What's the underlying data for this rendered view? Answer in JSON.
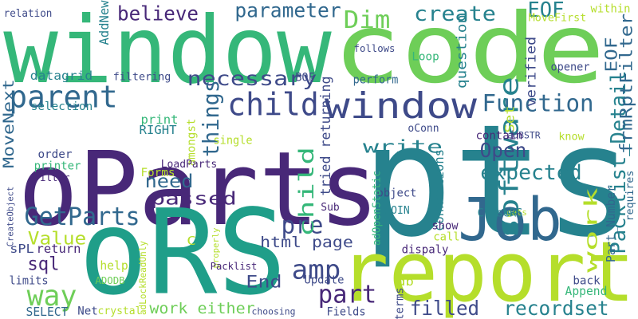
{
  "colors": {
    "background": "#ffffff",
    "palette": [
      "#440154",
      "#482878",
      "#3e4a89",
      "#31688e",
      "#26828e",
      "#1f9e89",
      "#35b779",
      "#6ece58",
      "#b5de2b",
      "#fde725"
    ]
  },
  "words": [
    {
      "text": "oParts",
      "color": "#482878"
    },
    {
      "text": "code",
      "color": "#6ece58"
    },
    {
      "text": "window",
      "color": "#35b779"
    },
    {
      "text": "pts",
      "color": "#26828e"
    },
    {
      "text": "oRS",
      "color": "#1f9e89"
    },
    {
      "text": "report",
      "color": "#b5de2b"
    },
    {
      "text": "Job",
      "color": "#31688e"
    },
    {
      "text": "child",
      "color": "#3e4a89"
    },
    {
      "text": "window",
      "color": "#3e4a89"
    },
    {
      "text": "Packlist_Detail",
      "color": "#26828e"
    },
    {
      "text": "parent",
      "color": "#31688e"
    },
    {
      "text": "GetParts",
      "color": "#31688e"
    },
    {
      "text": "way",
      "color": "#6ece58"
    },
    {
      "text": "sql",
      "color": "#482878"
    },
    {
      "text": "pre",
      "color": "#3e4a89"
    },
    {
      "text": "part",
      "color": "#482878"
    },
    {
      "text": "Function",
      "color": "#31688e"
    },
    {
      "text": "Dim",
      "color": "#6ece58"
    },
    {
      "text": "believe",
      "color": "#482878"
    },
    {
      "text": "parameter",
      "color": "#31688e"
    },
    {
      "text": "create",
      "color": "#26828e"
    },
    {
      "text": "EOF",
      "color": "#26828e"
    },
    {
      "text": "necessary",
      "color": "#3e4a89"
    },
    {
      "text": "software",
      "color": "#26828e"
    },
    {
      "text": "child",
      "color": "#35b779"
    },
    {
      "text": "things",
      "color": "#31688e"
    },
    {
      "text": "write",
      "color": "#26828e"
    },
    {
      "text": "Open",
      "color": "#3e4a89"
    },
    {
      "text": "expected",
      "color": "#26828e"
    },
    {
      "text": "need",
      "color": "#31688e"
    },
    {
      "text": "passed",
      "color": "#482878"
    },
    {
      "text": "Value",
      "color": "#b5de2b"
    },
    {
      "text": "amp",
      "color": "#3e4a89"
    },
    {
      "text": "End",
      "color": "#3e4a89"
    },
    {
      "text": "filled",
      "color": "#3e4a89"
    },
    {
      "text": "recordset",
      "color": "#26828e"
    },
    {
      "text": "work",
      "color": "#b5de2b"
    },
    {
      "text": "work either",
      "color": "#6ece58"
    },
    {
      "text": "html page",
      "color": "#3e4a89"
    },
    {
      "text": "tried returning",
      "color": "#3e4a89"
    },
    {
      "text": "EOF",
      "color": "#31688e"
    },
    {
      "text": "MoveFirst",
      "color": "#b5de2b"
    },
    {
      "text": "frmRptFilter",
      "color": "#31688e"
    },
    {
      "text": "Part_Number",
      "color": "#31688e"
    },
    {
      "text": "requires",
      "color": "#31688e"
    },
    {
      "text": "relation",
      "color": "#3e4a89"
    },
    {
      "text": "AddNew",
      "color": "#26828e"
    },
    {
      "text": "within",
      "color": "#b5de2b"
    },
    {
      "text": "follows",
      "color": "#3e4a89"
    },
    {
      "text": "question",
      "color": "#26828e"
    },
    {
      "text": "verified",
      "color": "#3e4a89"
    },
    {
      "text": "Loop",
      "color": "#35b779"
    },
    {
      "text": "perform",
      "color": "#31688e"
    },
    {
      "text": "opener",
      "color": "#3e4a89"
    },
    {
      "text": "datagrid",
      "color": "#26828e"
    },
    {
      "text": "filtering",
      "color": "#3e4a89"
    },
    {
      "text": "BOF",
      "color": "#3e4a89"
    },
    {
      "text": "MoveNext",
      "color": "#31688e"
    },
    {
      "text": "selection",
      "color": "#26828e"
    },
    {
      "text": "print",
      "color": "#35b779"
    },
    {
      "text": "RIGHT",
      "color": "#26828e"
    },
    {
      "text": "amongst",
      "color": "#b5de2b"
    },
    {
      "text": "oConn",
      "color": "#3e4a89"
    },
    {
      "text": "adBSTR",
      "color": "#3e4a89"
    },
    {
      "text": "Set",
      "color": "#b5de2b"
    },
    {
      "text": "know",
      "color": "#b5de2b"
    },
    {
      "text": "order",
      "color": "#3e4a89"
    },
    {
      "text": "printer",
      "color": "#35b779"
    },
    {
      "text": "filter",
      "color": "#482878"
    },
    {
      "text": "single",
      "color": "#b5de2b"
    },
    {
      "text": "contain",
      "color": "#482878"
    },
    {
      "text": "LoadParts",
      "color": "#482878"
    },
    {
      "text": "Forms",
      "color": "#b5de2b"
    },
    {
      "text": "connections",
      "color": "#26828e"
    },
    {
      "text": "gets",
      "color": "#b5de2b"
    },
    {
      "text": "CreateObject",
      "color": "#3e4a89"
    },
    {
      "text": "object",
      "color": "#3e4a89"
    },
    {
      "text": "Sub",
      "color": "#482878"
    },
    {
      "text": "JOIN",
      "color": "#26828e"
    },
    {
      "text": "adOpenStatic",
      "color": "#35b779"
    },
    {
      "text": "show",
      "color": "#482878"
    },
    {
      "text": "CloseRS",
      "color": "#26828e"
    },
    {
      "text": "sPL",
      "color": "#3e4a89"
    },
    {
      "text": "return",
      "color": "#482878"
    },
    {
      "text": "C",
      "color": "#b5de2b"
    },
    {
      "text": "properly",
      "color": "#b5de2b"
    },
    {
      "text": "call",
      "color": "#b5de2b"
    },
    {
      "text": "dispaly",
      "color": "#482878"
    },
    {
      "text": "help",
      "color": "#b5de2b"
    },
    {
      "text": "Packlist",
      "color": "#482878"
    },
    {
      "text": "limits",
      "color": "#3e4a89"
    },
    {
      "text": "ADODB",
      "color": "#6ece58"
    },
    {
      "text": "adLockReadOnly",
      "color": "#b5de2b"
    },
    {
      "text": "Update",
      "color": "#3e4a89"
    },
    {
      "text": "db",
      "color": "#b5de2b"
    },
    {
      "text": "back",
      "color": "#3e4a89"
    },
    {
      "text": "Append",
      "color": "#35b779"
    },
    {
      "text": "SELECT",
      "color": "#31688e"
    },
    {
      "text": "Net",
      "color": "#3e4a89"
    },
    {
      "text": "crystal",
      "color": "#b5de2b"
    },
    {
      "text": "choosing",
      "color": "#3e4a89"
    },
    {
      "text": "Fields",
      "color": "#3e4a89"
    },
    {
      "text": "terms",
      "color": "#3e4a89"
    }
  ]
}
